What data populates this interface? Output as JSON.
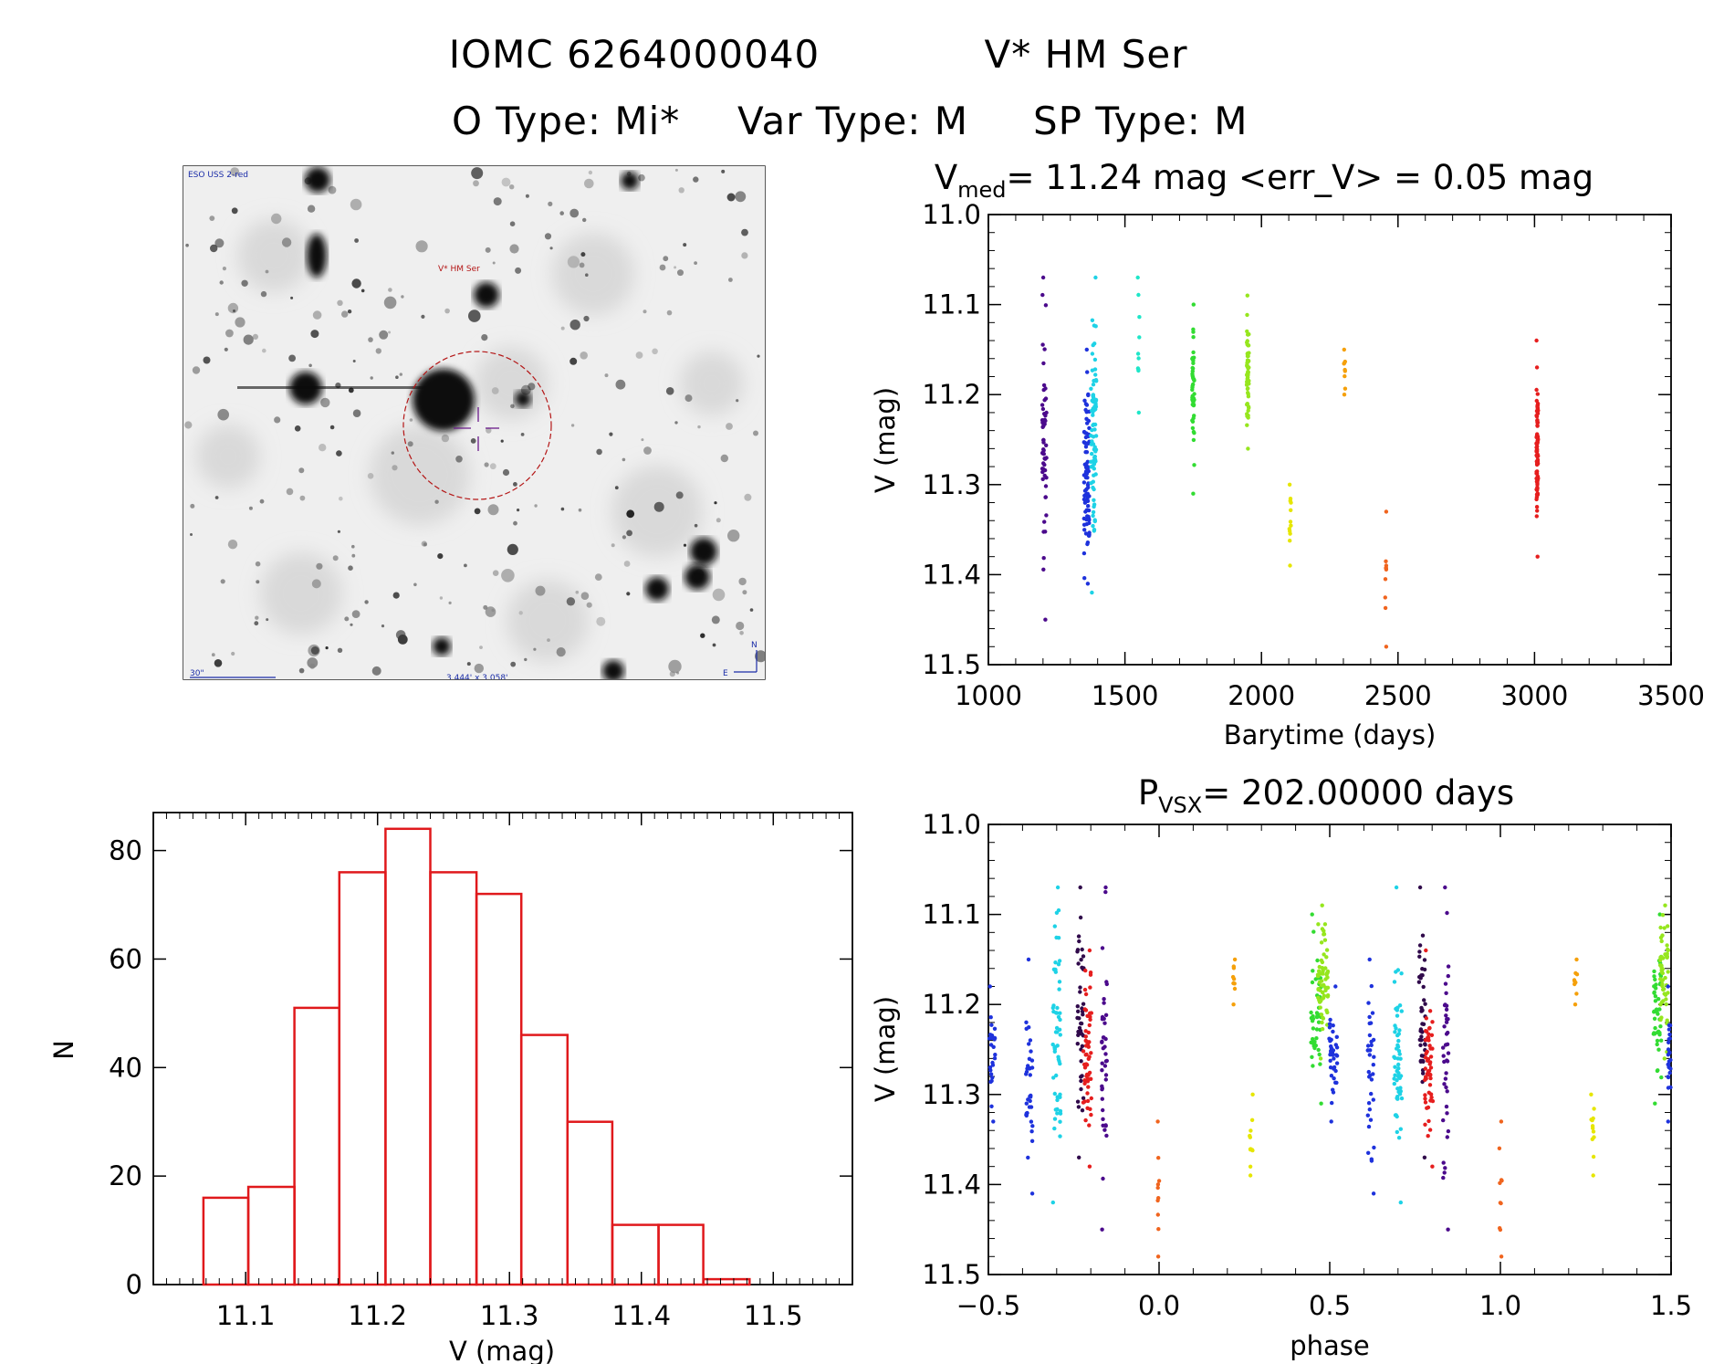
{
  "header": {
    "object_id": "IOMC 6264000040",
    "object_name": "V* HM Ser",
    "o_type": "O Type: Mi*",
    "var_type": "Var Type: M",
    "sp_type": "SP Type: M"
  },
  "finder": {
    "survey": "ESO USS 2-red",
    "target_label": "V* HM Ser",
    "scale_label": "30\"",
    "fov_label": "3.444' x 3.058'",
    "north": "N",
    "east": "E"
  },
  "colors": {
    "hist": "#e0191c",
    "circle": "#b41616",
    "annot": "#1a2ca8"
  },
  "chart_data": [
    {
      "id": "lightcurve",
      "type": "scatter",
      "title_prefix": "V",
      "title_sub": "med",
      "title_rest": "= 11.24 mag <err_V> = 0.05 mag",
      "xlabel": "Barytime (days)",
      "ylabel": "V (mag)",
      "xlim": [
        1000,
        3500
      ],
      "ylim": [
        11.0,
        11.5
      ],
      "y_inverted": true,
      "x_ticks": [
        1000,
        1500,
        2000,
        2500,
        3000,
        3500
      ],
      "y_ticks": [
        11.0,
        11.1,
        11.2,
        11.3,
        11.4,
        11.5
      ],
      "series": [
        {
          "name": "season1",
          "color": "#4b0a8c",
          "x": 1205,
          "x_spread": 8,
          "y_min": 11.07,
          "y_max": 11.45,
          "n": 55
        },
        {
          "name": "season2",
          "color": "#1e32dc",
          "x": 1360,
          "x_spread": 10,
          "y_min": 11.15,
          "y_max": 11.41,
          "n": 90
        },
        {
          "name": "season2b",
          "color": "#1ed2e6",
          "x": 1385,
          "x_spread": 10,
          "y_min": 11.07,
          "y_max": 11.42,
          "n": 80
        },
        {
          "name": "season3",
          "color": "#1ee6c8",
          "x": 1550,
          "x_spread": 3,
          "y_min": 11.07,
          "y_max": 11.22,
          "n": 10
        },
        {
          "name": "season4",
          "color": "#32dc32",
          "x": 1750,
          "x_spread": 4,
          "y_min": 11.1,
          "y_max": 11.31,
          "n": 45
        },
        {
          "name": "season5",
          "color": "#96e61e",
          "x": 1950,
          "x_spread": 4,
          "y_min": 11.09,
          "y_max": 11.26,
          "n": 70
        },
        {
          "name": "season6",
          "color": "#e6e600",
          "x": 2105,
          "x_spread": 3,
          "y_min": 11.3,
          "y_max": 11.39,
          "n": 12
        },
        {
          "name": "season7",
          "color": "#f5a00a",
          "x": 2305,
          "x_spread": 3,
          "y_min": 11.15,
          "y_max": 11.2,
          "n": 9
        },
        {
          "name": "season8",
          "color": "#f0641e",
          "x": 2455,
          "x_spread": 2,
          "y_min": 11.33,
          "y_max": 11.48,
          "n": 10
        },
        {
          "name": "season9",
          "color": "#e61e1e",
          "x": 3010,
          "x_spread": 3,
          "y_min": 11.14,
          "y_max": 11.38,
          "n": 90
        }
      ]
    },
    {
      "id": "phased",
      "type": "scatter",
      "title_prefix": "P",
      "title_sub": "VSX",
      "title_rest": "= 202.00000 days",
      "xlabel": "phase",
      "ylabel": "V (mag)",
      "xlim": [
        -0.5,
        1.5
      ],
      "ylim": [
        11.0,
        11.5
      ],
      "y_inverted": true,
      "x_ticks": [
        -0.5,
        0.0,
        0.5,
        1.0,
        1.5
      ],
      "x_tick_labels": [
        "−0.5",
        "0.0",
        "0.5",
        "1.0",
        "1.5"
      ],
      "y_ticks": [
        11.0,
        11.1,
        11.2,
        11.3,
        11.4,
        11.5
      ],
      "series": [
        {
          "name": "s-blue-a",
          "color": "#1e32dc",
          "x": -0.49,
          "x_spread": 0.01,
          "y_min": 11.18,
          "y_max": 11.33,
          "n": 25
        },
        {
          "name": "s-blue-b",
          "color": "#1e32dc",
          "x": -0.38,
          "x_spread": 0.01,
          "y_min": 11.15,
          "y_max": 11.41,
          "n": 35
        },
        {
          "name": "s-cyan",
          "color": "#1ed2e6",
          "x": -0.3,
          "x_spread": 0.012,
          "y_min": 11.07,
          "y_max": 11.42,
          "n": 55
        },
        {
          "name": "s-dark",
          "color": "#300a4b",
          "x": -0.23,
          "x_spread": 0.01,
          "y_min": 11.07,
          "y_max": 11.37,
          "n": 45
        },
        {
          "name": "s-red",
          "color": "#e61e1e",
          "x": -0.21,
          "x_spread": 0.012,
          "y_min": 11.14,
          "y_max": 11.38,
          "n": 55
        },
        {
          "name": "s-purple",
          "color": "#4b0a8c",
          "x": -0.16,
          "x_spread": 0.008,
          "y_min": 11.07,
          "y_max": 11.45,
          "n": 40
        },
        {
          "name": "s-orange-red",
          "color": "#f0641e",
          "x": 0.0,
          "x_spread": 0.004,
          "y_min": 11.33,
          "y_max": 11.48,
          "n": 10
        },
        {
          "name": "s-orange",
          "color": "#f5a00a",
          "x": 0.22,
          "x_spread": 0.005,
          "y_min": 11.15,
          "y_max": 11.2,
          "n": 9
        },
        {
          "name": "s-yellow",
          "color": "#e6e600",
          "x": 0.27,
          "x_spread": 0.005,
          "y_min": 11.3,
          "y_max": 11.39,
          "n": 12
        },
        {
          "name": "s-green",
          "color": "#32dc32",
          "x": 0.46,
          "x_spread": 0.015,
          "y_min": 11.1,
          "y_max": 11.31,
          "n": 45
        },
        {
          "name": "s-lime",
          "color": "#96e61e",
          "x": 0.48,
          "x_spread": 0.015,
          "y_min": 11.09,
          "y_max": 11.26,
          "n": 60
        },
        {
          "name": "s-blue-c",
          "color": "#1e32dc",
          "x": 0.51,
          "x_spread": 0.012,
          "y_min": 11.18,
          "y_max": 11.33,
          "n": 40
        },
        {
          "name": "s-blue-d",
          "color": "#1e32dc",
          "x": 0.62,
          "x_spread": 0.01,
          "y_min": 11.15,
          "y_max": 11.41,
          "n": 35
        },
        {
          "name": "s-cyan-b",
          "color": "#1ed2e6",
          "x": 0.7,
          "x_spread": 0.012,
          "y_min": 11.07,
          "y_max": 11.42,
          "n": 55
        },
        {
          "name": "s-dark-b",
          "color": "#300a4b",
          "x": 0.77,
          "x_spread": 0.01,
          "y_min": 11.07,
          "y_max": 11.37,
          "n": 45
        },
        {
          "name": "s-red-b",
          "color": "#e61e1e",
          "x": 0.79,
          "x_spread": 0.012,
          "y_min": 11.14,
          "y_max": 11.38,
          "n": 55
        },
        {
          "name": "s-purple-b",
          "color": "#4b0a8c",
          "x": 0.84,
          "x_spread": 0.008,
          "y_min": 11.07,
          "y_max": 11.45,
          "n": 40
        },
        {
          "name": "s-orange-red-b",
          "color": "#f0641e",
          "x": 1.0,
          "x_spread": 0.004,
          "y_min": 11.33,
          "y_max": 11.48,
          "n": 10
        },
        {
          "name": "s-orange-b",
          "color": "#f5a00a",
          "x": 1.22,
          "x_spread": 0.005,
          "y_min": 11.15,
          "y_max": 11.2,
          "n": 9
        },
        {
          "name": "s-yellow-b",
          "color": "#e6e600",
          "x": 1.27,
          "x_spread": 0.005,
          "y_min": 11.3,
          "y_max": 11.39,
          "n": 12
        },
        {
          "name": "s-green-b",
          "color": "#32dc32",
          "x": 1.46,
          "x_spread": 0.012,
          "y_min": 11.1,
          "y_max": 11.31,
          "n": 45
        },
        {
          "name": "s-lime-b",
          "color": "#96e61e",
          "x": 1.48,
          "x_spread": 0.012,
          "y_min": 11.09,
          "y_max": 11.26,
          "n": 55
        },
        {
          "name": "s-blue-e",
          "color": "#1e32dc",
          "x": 1.495,
          "x_spread": 0.004,
          "y_min": 11.18,
          "y_max": 11.33,
          "n": 25
        }
      ]
    },
    {
      "id": "histogram",
      "type": "bar",
      "xlabel": "V (mag)",
      "ylabel": "N",
      "xlim": [
        11.03,
        11.56
      ],
      "ylim": [
        0,
        87
      ],
      "x_ticks": [
        11.1,
        11.2,
        11.3,
        11.4,
        11.5
      ],
      "y_ticks": [
        0,
        20,
        40,
        60,
        80
      ],
      "bin_edges": [
        11.068,
        11.102,
        11.137,
        11.171,
        11.206,
        11.24,
        11.275,
        11.309,
        11.344,
        11.378,
        11.413,
        11.447,
        11.482
      ],
      "values": [
        16,
        18,
        51,
        76,
        84,
        76,
        72,
        46,
        30,
        11,
        11,
        1
      ]
    }
  ]
}
